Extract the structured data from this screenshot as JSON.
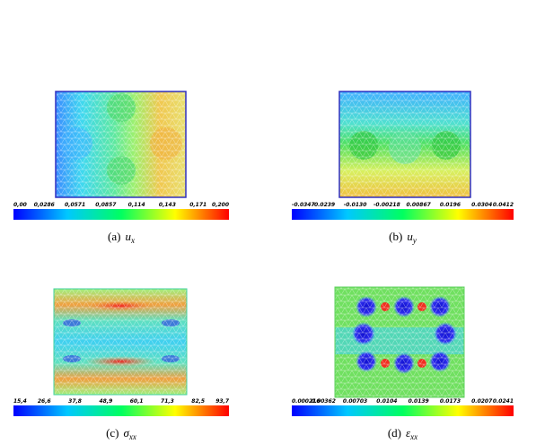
{
  "panels": [
    {
      "ticks": [
        "0,00",
        "0,0286",
        "0,0571",
        "0,0857",
        "0,114",
        "0,143",
        "0,171",
        "0,200"
      ],
      "caption": {
        "label": "(a)",
        "symbol": "u",
        "subscript": "x"
      }
    },
    {
      "ticks": [
        "-0.0347",
        "-0.0239",
        "-0.0130",
        "-0.00218",
        "0.00867",
        "0.0196",
        "0.0304",
        "0.0412"
      ],
      "caption": {
        "label": "(b)",
        "symbol": "u",
        "subscript": "y"
      }
    },
    {
      "ticks": [
        "15,4",
        "26,6",
        "37,8",
        "48,9",
        "60,1",
        "71,3",
        "82,5",
        "93,7"
      ],
      "caption": {
        "label": "(c)",
        "symbol": "σ",
        "subscript": "xx"
      }
    },
    {
      "ticks": [
        "0.000216",
        "0.00362",
        "0.00703",
        "0.0104",
        "0.0139",
        "0.0173",
        "0.0207",
        "0.0241"
      ],
      "caption": {
        "label": "(d)",
        "symbol": "ε",
        "subscript": "xx"
      }
    }
  ]
}
